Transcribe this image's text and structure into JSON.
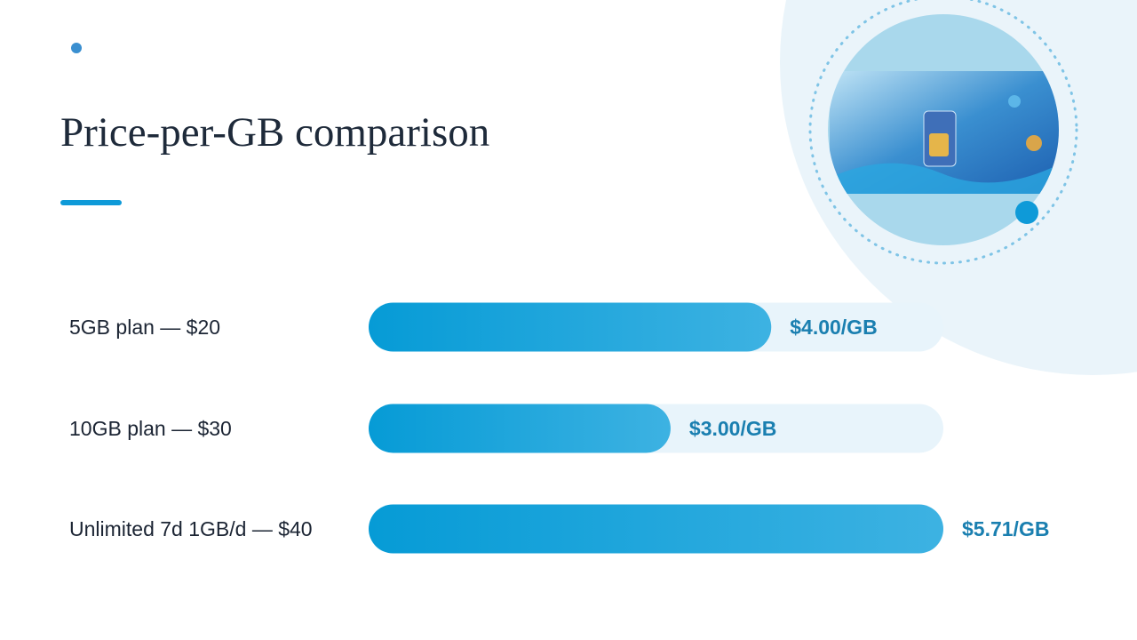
{
  "chart_data": {
    "type": "bar",
    "orientation": "horizontal",
    "title": "Price-per-GB comparison",
    "categories": [
      "5GB plan — $20",
      "10GB plan — $30",
      "Unlimited 7d 1GB/d — $40"
    ],
    "values": [
      4.0,
      3.0,
      5.71
    ],
    "value_labels": [
      "$4.00/GB",
      "$3.00/GB",
      "$5.71/GB"
    ],
    "color": "#0aa0d8"
  }
}
